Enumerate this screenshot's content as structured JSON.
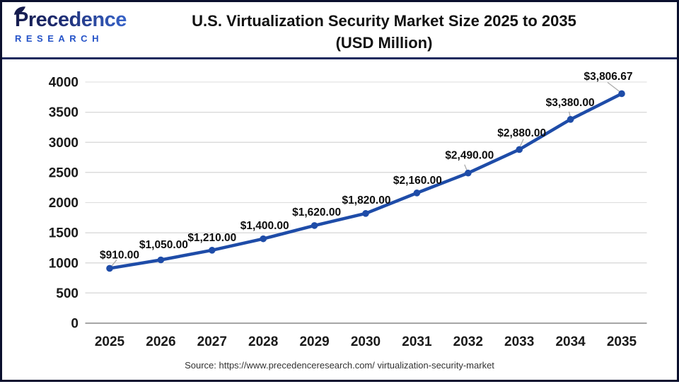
{
  "header": {
    "logo": {
      "line1": "Precedence",
      "line2": "RESEARCH"
    },
    "title_line1": "U.S. Virtualization Security Market Size 2025 to 2035",
    "title_line2": "(USD Million)"
  },
  "chart_data": {
    "type": "line",
    "title": "U.S. Virtualization Security Market Size 2025 to 2035",
    "subtitle": "(USD Million)",
    "categories": [
      "2025",
      "2026",
      "2027",
      "2028",
      "2029",
      "2030",
      "2031",
      "2032",
      "2033",
      "2034",
      "2035"
    ],
    "values": [
      910,
      1050,
      1210,
      1400,
      1620,
      1820,
      2160,
      2490,
      2880,
      3380,
      3806.67
    ],
    "point_labels": [
      "$910.00",
      "$1,050.00",
      "$1,210.00",
      "$1,400.00",
      "$1,620.00",
      "$1,820.00",
      "$2,160.00",
      "$2,490.00",
      "$2,880.00",
      "$3,380.00",
      "$3,806.67"
    ],
    "xlabel": "",
    "ylabel": "",
    "ylim": [
      0,
      4000
    ],
    "yticks": [
      0,
      500,
      1000,
      1500,
      2000,
      2500,
      3000,
      3500,
      4000
    ],
    "grid": "horizontal",
    "legend": "none",
    "marker": "circle",
    "line_color": "#1e4ca8"
  },
  "footer": {
    "source": "Source: https://www.precedenceresearch.com/ virtualization-security-market"
  },
  "colors": {
    "accent_blue": "#1e4ca8",
    "divider_navy": "#1e2a5e",
    "border_navy": "#0b102e",
    "gridline": "#dcdcdc",
    "axis_line": "#a6a6a6",
    "tick_text": "#1a1a1a",
    "data_label_text": "#0d0d0d",
    "logo_navy": "#161c4e",
    "logo_blue": "#3a6ad4",
    "research_blue": "#2553c8",
    "leader_line": "#ababab"
  }
}
